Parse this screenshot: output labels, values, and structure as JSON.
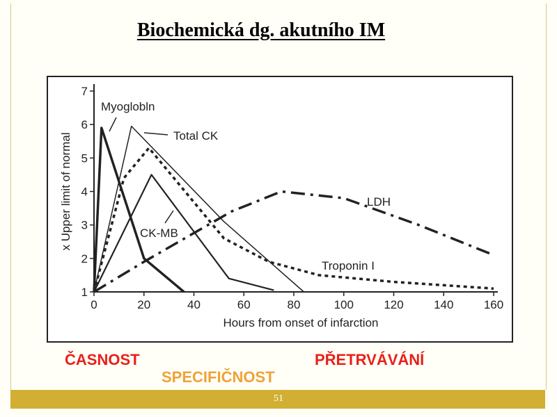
{
  "slide": {
    "title": "Biochemická dg. akutního IM",
    "page_number": "51"
  },
  "labels": {
    "early": "ČASNOST",
    "duration": "PŘETRVÁVÁNÍ",
    "specificity": "SPECIFIČNOST"
  },
  "chart_data": {
    "type": "line",
    "xlabel": "Hours from onset of infarction",
    "ylabel": "x Upper limit of normal",
    "xlim": [
      0,
      160
    ],
    "ylim": [
      1,
      7
    ],
    "xticks": [
      0,
      20,
      40,
      60,
      80,
      100,
      120,
      140,
      160
    ],
    "yticks": [
      1,
      2,
      3,
      4,
      5,
      6,
      7
    ],
    "grid": false,
    "series": [
      {
        "name": "Myoglobin",
        "label_text": "Myoglobln",
        "style": "solid-thick",
        "x": [
          0,
          3,
          20,
          36
        ],
        "y": [
          1,
          5.9,
          2.0,
          1.0
        ]
      },
      {
        "name": "Total CK",
        "label_text": "Total CK",
        "style": "solid-thin",
        "x": [
          0,
          15,
          52,
          84
        ],
        "y": [
          1,
          5.95,
          3.1,
          1.0
        ]
      },
      {
        "name": "CK-MB",
        "label_text": "CK-MB",
        "style": "solid-medium",
        "x": [
          0,
          23,
          54,
          72
        ],
        "y": [
          1,
          4.5,
          1.4,
          1.05
        ]
      },
      {
        "name": "Troponin I",
        "label_text": "Troponin I",
        "style": "dotted",
        "x": [
          0,
          12,
          22,
          52,
          70,
          90,
          120,
          160
        ],
        "y": [
          1,
          4.4,
          5.3,
          2.6,
          1.9,
          1.5,
          1.3,
          1.1
        ]
      },
      {
        "name": "LDH",
        "label_text": "LDH",
        "style": "dash-dot",
        "x": [
          0,
          20,
          55,
          75,
          100,
          130,
          160
        ],
        "y": [
          1,
          1.9,
          3.4,
          4.0,
          3.8,
          3.0,
          2.1
        ]
      }
    ]
  }
}
